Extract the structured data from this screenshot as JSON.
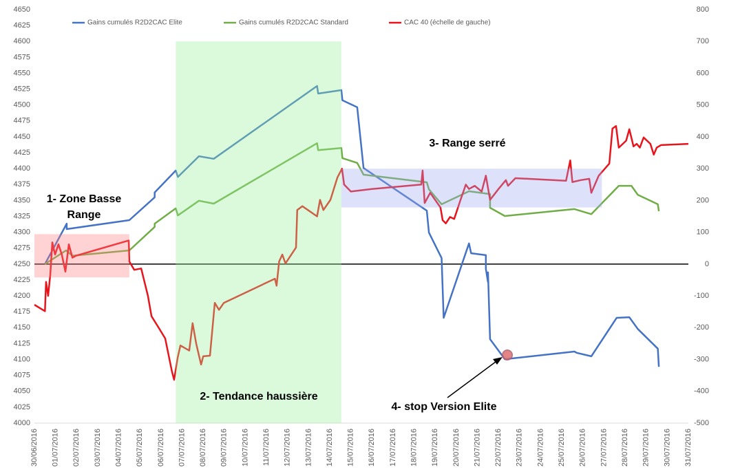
{
  "chart_data": {
    "type": "line",
    "legend": "top",
    "grid": true,
    "xlim": [
      0,
      31
    ],
    "xticks": [
      {
        "value": 0,
        "label": "30/06/2016"
      },
      {
        "value": 1,
        "label": "01/07/2016"
      },
      {
        "value": 2,
        "label": "02/07/2016"
      },
      {
        "value": 3,
        "label": "03/07/2016"
      },
      {
        "value": 4,
        "label": "04/07/2016"
      },
      {
        "value": 5,
        "label": "05/07/2016"
      },
      {
        "value": 6,
        "label": "06/07/2016"
      },
      {
        "value": 7,
        "label": "07/07/2016"
      },
      {
        "value": 8,
        "label": "08/07/2016"
      },
      {
        "value": 9,
        "label": "09/07/2016"
      },
      {
        "value": 10,
        "label": "10/07/2016"
      },
      {
        "value": 11,
        "label": "11/07/2016"
      },
      {
        "value": 12,
        "label": "12/07/2016"
      },
      {
        "value": 13,
        "label": "13/07/2016"
      },
      {
        "value": 14,
        "label": "14/07/2016"
      },
      {
        "value": 15,
        "label": "15/07/2016"
      },
      {
        "value": 16,
        "label": "16/07/2016"
      },
      {
        "value": 17,
        "label": "17/07/2016"
      },
      {
        "value": 18,
        "label": "18/07/2016"
      },
      {
        "value": 19,
        "label": "19/07/2016"
      },
      {
        "value": 20,
        "label": "20/07/2016"
      },
      {
        "value": 21,
        "label": "21/07/2016"
      },
      {
        "value": 22,
        "label": "22/07/2016"
      },
      {
        "value": 23,
        "label": "23/07/2016"
      },
      {
        "value": 24,
        "label": "24/07/2016"
      },
      {
        "value": 25,
        "label": "25/07/2016"
      },
      {
        "value": 26,
        "label": "26/07/2016"
      },
      {
        "value": 27,
        "label": "27/07/2016"
      },
      {
        "value": 28,
        "label": "28/07/2016"
      },
      {
        "value": 29,
        "label": "29/07/2016"
      },
      {
        "value": 30,
        "label": "30/07/2016"
      },
      {
        "value": 31,
        "label": "31/07/2016"
      }
    ],
    "ylim": [
      4000,
      4650
    ],
    "yticks": [
      4000,
      4025,
      4050,
      4075,
      4100,
      4125,
      4150,
      4175,
      4200,
      4225,
      4250,
      4275,
      4300,
      4325,
      4350,
      4375,
      4400,
      4425,
      4450,
      4475,
      4500,
      4525,
      4550,
      4575,
      4600,
      4625,
      4650
    ],
    "y2lim": [
      -500,
      800
    ],
    "y2ticks": [
      -500,
      -400,
      -300,
      -200,
      -100,
      0,
      100,
      200,
      300,
      400,
      500,
      600,
      700,
      800
    ],
    "zero_line_color": "#000000",
    "series": [
      {
        "name": "Gains cumulés R2D2CAC Elite",
        "color": "#4472c4",
        "axis": "y2",
        "x": [
          0.5,
          1.53,
          1.53,
          4.5,
          5.7,
          5.7,
          6.7,
          6.8,
          7.8,
          8.5,
          13.4,
          13.45,
          14.55,
          14.6,
          15.3,
          15.6,
          18.6,
          18.7,
          19.3,
          19.4,
          20.6,
          20.7,
          21.4,
          21.4,
          21.5,
          21.5,
          21.6,
          22.3,
          25.6,
          25.7,
          26.4,
          27.6,
          28.2,
          28.6,
          29.55,
          29.6
        ],
        "values": [
          0,
          127,
          110,
          138,
          210,
          225,
          294,
          274,
          339,
          331,
          560,
          536,
          547,
          515,
          493,
          302,
          168,
          99,
          19,
          -169,
          65,
          34,
          28,
          -15,
          -57,
          -26,
          -236,
          -299,
          -275,
          -279,
          -290,
          -169,
          -167,
          -204,
          -266,
          -323
        ]
      },
      {
        "name": "Gains cumulés R2D2CAC Standard",
        "color": "#70ad47",
        "axis": "y2",
        "x": [
          0.5,
          1.5,
          1.8,
          4.5,
          5.7,
          5.7,
          6.7,
          6.8,
          7.8,
          8.5,
          13.4,
          13.45,
          14.55,
          14.6,
          15.3,
          15.6,
          18.6,
          18.7,
          19.3,
          20.6,
          21.6,
          21.6,
          22.3,
          25.6,
          26.4,
          27.7,
          28.3,
          28.6,
          29.55,
          29.6
        ],
        "values": [
          0,
          43,
          26,
          43,
          117,
          127,
          175,
          153,
          199,
          190,
          380,
          358,
          365,
          333,
          318,
          281,
          257,
          235,
          188,
          229,
          220,
          177,
          151,
          173,
          157,
          246,
          246,
          218,
          188,
          166
        ]
      },
      {
        "name": "CAC 40 (échelle de gauche)",
        "color": "#e8141c",
        "x": [
          0,
          0.5,
          0.55,
          0.65,
          0.75,
          0.85,
          0.98,
          1.14,
          1.3,
          1.47,
          1.63,
          1.8,
          1.96,
          4.47,
          4.5,
          4.73,
          5.06,
          5.38,
          5.55,
          5.87,
          6.2,
          6.52,
          6.62,
          6.79,
          6.92,
          7.34,
          7.5,
          7.67,
          7.9,
          8.0,
          8.32,
          8.55,
          8.75,
          8.98,
          11.4,
          11.48,
          11.6,
          11.75,
          11.9,
          12.4,
          12.46,
          12.7,
          13.4,
          13.54,
          13.7,
          14.03,
          14.36,
          14.58,
          14.68,
          15.0,
          15.99,
          18.34,
          18.4,
          18.5,
          18.76,
          19.25,
          19.35,
          19.5,
          19.7,
          19.9,
          20.2,
          20.45,
          20.6,
          20.87,
          21.2,
          21.4,
          21.6,
          22.0,
          22.35,
          22.45,
          22.8,
          25.2,
          25.4,
          25.5,
          25.9,
          26.3,
          26.4,
          26.75,
          27.25,
          27.4,
          27.57,
          27.7,
          28.05,
          28.2,
          28.4,
          28.55,
          28.7,
          28.88,
          29.2,
          29.36,
          29.5,
          29.7,
          31
        ],
        "values": [
          4186,
          4176,
          4222,
          4200,
          4233,
          4284,
          4265,
          4281,
          4265,
          4238,
          4281,
          4260,
          4263,
          4287,
          4254,
          4241,
          4243,
          4200,
          4168,
          4151,
          4133,
          4081,
          4068,
          4103,
          4122,
          4114,
          4157,
          4125,
          4092,
          4105,
          4106,
          4189,
          4178,
          4189,
          4227,
          4216,
          4254,
          4265,
          4251,
          4276,
          4335,
          4341,
          4325,
          4351,
          4335,
          4351,
          4386,
          4400,
          4375,
          4364,
          4368,
          4375,
          4397,
          4346,
          4362,
          4339,
          4319,
          4314,
          4324,
          4321,
          4351,
          4375,
          4368,
          4373,
          4364,
          4389,
          4351,
          4368,
          4382,
          4373,
          4385,
          4381,
          4413,
          4379,
          4382,
          4384,
          4362,
          4389,
          4408,
          4463,
          4467,
          4433,
          4444,
          4462,
          4435,
          4439,
          4433,
          4449,
          4439,
          4422,
          4433,
          4437,
          4439
        ]
      }
    ],
    "regions": [
      {
        "x": [
          0,
          4.5
        ],
        "y": [
          4229,
          4297
        ],
        "color": "#ff8080"
      },
      {
        "x": [
          6.7,
          14.55
        ],
        "y": [
          4000,
          4600
        ],
        "color": "#99f099"
      },
      {
        "x": [
          14.55,
          26.9
        ],
        "y": [
          4339,
          4400
        ],
        "color": "#9ea8f0"
      }
    ],
    "annotations": [
      {
        "lines": [
          "1- Zone Basse",
          "Range"
        ]
      },
      {
        "lines": [
          "2- Tendance haussière"
        ]
      },
      {
        "lines": [
          "3- Range serré"
        ]
      },
      {
        "lines": [
          "4- stop Version Elite"
        ]
      }
    ]
  }
}
